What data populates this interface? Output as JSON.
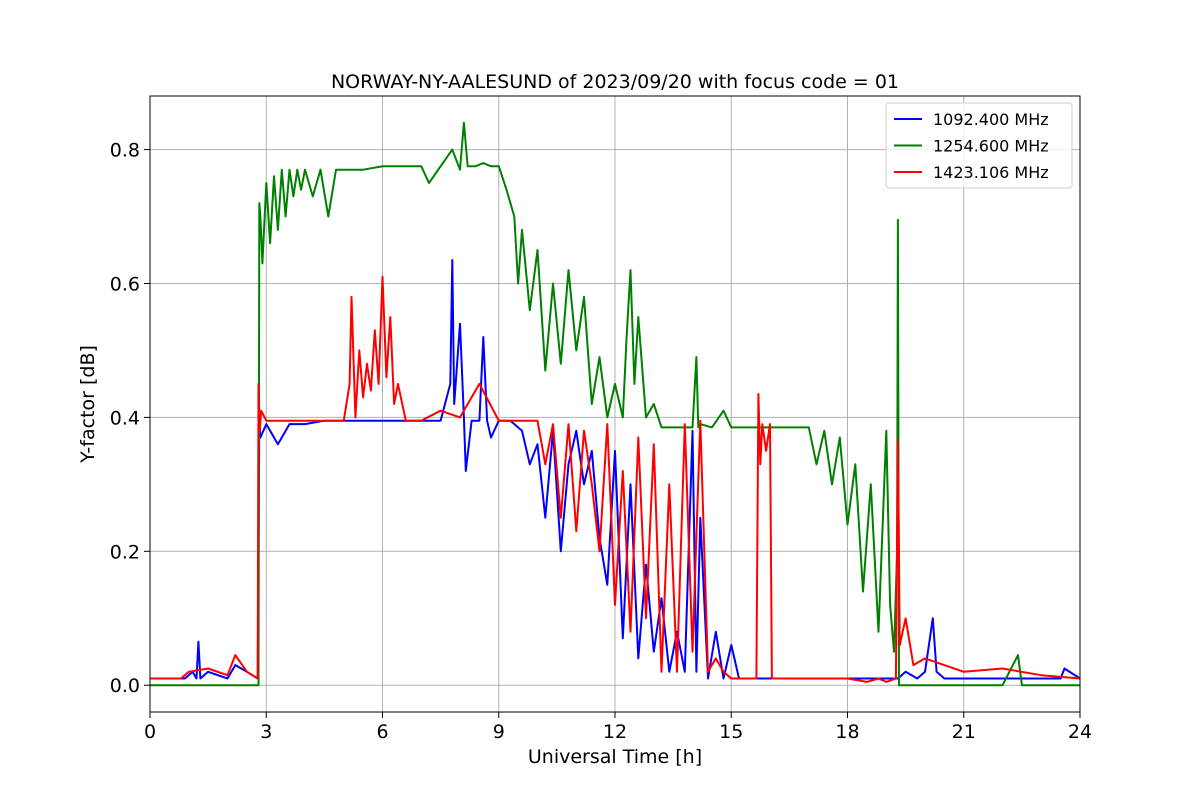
{
  "chart_data": {
    "type": "line",
    "title": "NORWAY-NY-AALESUND of 2023/09/20 with focus code = 01",
    "xlabel": "Universal Time [h]",
    "ylabel": "Y-factor [dB]",
    "xlim": [
      0,
      24
    ],
    "ylim": [
      -0.04,
      0.88
    ],
    "xticks": [
      0,
      3,
      6,
      9,
      12,
      15,
      18,
      21,
      24
    ],
    "xtick_labels": [
      "0",
      "3",
      "6",
      "9",
      "12",
      "15",
      "18",
      "21",
      "24"
    ],
    "yticks": [
      0.0,
      0.2,
      0.4,
      0.6,
      0.8
    ],
    "ytick_labels": [
      "0.0",
      "0.2",
      "0.4",
      "0.6",
      "0.8"
    ],
    "grid": true,
    "legend_position": "top-right",
    "series": [
      {
        "name": "1092.400 MHz",
        "color": "#0000ff",
        "x": [
          0.0,
          0.9,
          1.1,
          1.2,
          1.25,
          1.3,
          1.5,
          2.0,
          2.2,
          2.5,
          2.78,
          2.82,
          2.85,
          3.0,
          3.3,
          3.6,
          4.0,
          4.5,
          5.0,
          5.5,
          6.0,
          6.5,
          7.0,
          7.5,
          7.75,
          7.8,
          7.85,
          8.0,
          8.1,
          8.15,
          8.3,
          8.5,
          8.6,
          8.7,
          8.8,
          9.0,
          9.3,
          9.6,
          9.8,
          10.0,
          10.2,
          10.4,
          10.6,
          10.8,
          11.0,
          11.2,
          11.4,
          11.6,
          11.8,
          12.0,
          12.2,
          12.4,
          12.6,
          12.8,
          13.0,
          13.2,
          13.4,
          13.6,
          13.8,
          14.0,
          14.1,
          14.2,
          14.4,
          14.6,
          14.8,
          15.0,
          15.2,
          15.4,
          15.6,
          16.0,
          17.0,
          18.0,
          19.0,
          19.3,
          19.5,
          19.8,
          20.0,
          20.2,
          20.3,
          20.5,
          21.0,
          21.5,
          22.0,
          22.5,
          23.0,
          23.5,
          23.6,
          24.0
        ],
        "y": [
          0.01,
          0.01,
          0.02,
          0.01,
          0.065,
          0.01,
          0.02,
          0.01,
          0.03,
          0.02,
          0.01,
          0.39,
          0.37,
          0.39,
          0.36,
          0.39,
          0.39,
          0.395,
          0.395,
          0.395,
          0.395,
          0.395,
          0.395,
          0.395,
          0.45,
          0.635,
          0.42,
          0.54,
          0.4,
          0.32,
          0.395,
          0.395,
          0.52,
          0.395,
          0.37,
          0.395,
          0.395,
          0.38,
          0.33,
          0.36,
          0.25,
          0.38,
          0.2,
          0.33,
          0.38,
          0.3,
          0.35,
          0.22,
          0.15,
          0.35,
          0.07,
          0.3,
          0.04,
          0.18,
          0.05,
          0.13,
          0.02,
          0.08,
          0.02,
          0.38,
          0.02,
          0.25,
          0.01,
          0.08,
          0.01,
          0.06,
          0.01,
          0.01,
          0.01,
          0.01,
          0.01,
          0.01,
          0.01,
          0.01,
          0.02,
          0.01,
          0.02,
          0.1,
          0.02,
          0.01,
          0.01,
          0.01,
          0.01,
          0.01,
          0.01,
          0.01,
          0.025,
          0.01
        ]
      },
      {
        "name": "1254.600 MHz",
        "color": "#008000",
        "x": [
          0.0,
          2.8,
          2.82,
          2.85,
          2.9,
          3.0,
          3.1,
          3.2,
          3.3,
          3.4,
          3.5,
          3.6,
          3.7,
          3.8,
          3.9,
          4.0,
          4.2,
          4.4,
          4.6,
          4.8,
          5.0,
          5.5,
          6.0,
          6.5,
          7.0,
          7.2,
          7.5,
          7.8,
          8.0,
          8.1,
          8.2,
          8.4,
          8.6,
          8.8,
          9.0,
          9.2,
          9.4,
          9.5,
          9.6,
          9.8,
          10.0,
          10.2,
          10.4,
          10.6,
          10.8,
          11.0,
          11.2,
          11.4,
          11.6,
          11.8,
          12.0,
          12.2,
          12.3,
          12.4,
          12.5,
          12.6,
          12.8,
          13.0,
          13.2,
          13.5,
          14.0,
          14.1,
          14.15,
          14.2,
          14.5,
          14.8,
          15.0,
          15.5,
          15.7,
          16.0,
          16.5,
          17.0,
          17.2,
          17.4,
          17.6,
          17.8,
          18.0,
          18.2,
          18.4,
          18.6,
          18.8,
          19.0,
          19.1,
          19.2,
          19.28,
          19.3,
          19.33,
          19.4,
          19.6,
          20.0,
          21.0,
          22.0,
          22.4,
          22.5,
          23.0,
          24.0
        ],
        "y": [
          0.0,
          0.0,
          0.72,
          0.7,
          0.63,
          0.75,
          0.66,
          0.76,
          0.68,
          0.77,
          0.7,
          0.77,
          0.73,
          0.77,
          0.74,
          0.77,
          0.73,
          0.77,
          0.7,
          0.77,
          0.77,
          0.77,
          0.775,
          0.775,
          0.775,
          0.75,
          0.775,
          0.8,
          0.77,
          0.84,
          0.775,
          0.775,
          0.78,
          0.775,
          0.775,
          0.74,
          0.7,
          0.6,
          0.68,
          0.56,
          0.65,
          0.47,
          0.6,
          0.48,
          0.62,
          0.5,
          0.58,
          0.42,
          0.49,
          0.4,
          0.45,
          0.4,
          0.52,
          0.62,
          0.45,
          0.55,
          0.4,
          0.42,
          0.385,
          0.385,
          0.385,
          0.49,
          0.385,
          0.39,
          0.385,
          0.41,
          0.385,
          0.385,
          0.385,
          0.385,
          0.385,
          0.385,
          0.33,
          0.38,
          0.3,
          0.37,
          0.24,
          0.33,
          0.14,
          0.3,
          0.08,
          0.38,
          0.12,
          0.05,
          0.2,
          0.695,
          0.0,
          0.0,
          0.0,
          0.0,
          0.0,
          0.0,
          0.045,
          0.0,
          0.0,
          0.0
        ]
      },
      {
        "name": "1423.106 MHz",
        "color": "#ff0000",
        "x": [
          0.0,
          0.8,
          1.0,
          1.5,
          2.0,
          2.2,
          2.5,
          2.78,
          2.8,
          2.83,
          2.87,
          3.0,
          4.0,
          5.0,
          5.15,
          5.2,
          5.3,
          5.4,
          5.5,
          5.6,
          5.7,
          5.8,
          5.9,
          6.0,
          6.1,
          6.2,
          6.3,
          6.4,
          6.6,
          7.0,
          7.5,
          8.0,
          8.5,
          9.0,
          10.0,
          10.2,
          10.4,
          10.6,
          10.8,
          11.0,
          11.2,
          11.4,
          11.6,
          11.8,
          12.0,
          12.2,
          12.4,
          12.6,
          12.8,
          13.0,
          13.2,
          13.4,
          13.6,
          13.8,
          14.0,
          14.2,
          14.4,
          14.6,
          14.8,
          15.0,
          15.5,
          15.65,
          15.7,
          15.75,
          15.8,
          15.9,
          16.0,
          16.05,
          16.1,
          17.0,
          18.0,
          18.5,
          18.8,
          19.0,
          19.25,
          19.3,
          19.35,
          19.5,
          19.7,
          20.0,
          21.0,
          22.0,
          23.0,
          24.0
        ],
        "y": [
          0.01,
          0.01,
          0.02,
          0.025,
          0.015,
          0.045,
          0.02,
          0.01,
          0.45,
          0.38,
          0.41,
          0.395,
          0.395,
          0.395,
          0.45,
          0.58,
          0.4,
          0.5,
          0.43,
          0.48,
          0.44,
          0.53,
          0.45,
          0.61,
          0.46,
          0.55,
          0.42,
          0.45,
          0.395,
          0.395,
          0.41,
          0.4,
          0.45,
          0.395,
          0.395,
          0.33,
          0.39,
          0.25,
          0.39,
          0.23,
          0.38,
          0.3,
          0.2,
          0.39,
          0.12,
          0.32,
          0.08,
          0.37,
          0.1,
          0.36,
          0.02,
          0.3,
          0.02,
          0.39,
          0.05,
          0.395,
          0.02,
          0.04,
          0.02,
          0.01,
          0.01,
          0.01,
          0.435,
          0.33,
          0.39,
          0.35,
          0.39,
          0.01,
          0.01,
          0.01,
          0.01,
          0.005,
          0.01,
          0.005,
          0.01,
          0.365,
          0.06,
          0.1,
          0.03,
          0.04,
          0.02,
          0.025,
          0.015,
          0.01
        ]
      }
    ]
  }
}
